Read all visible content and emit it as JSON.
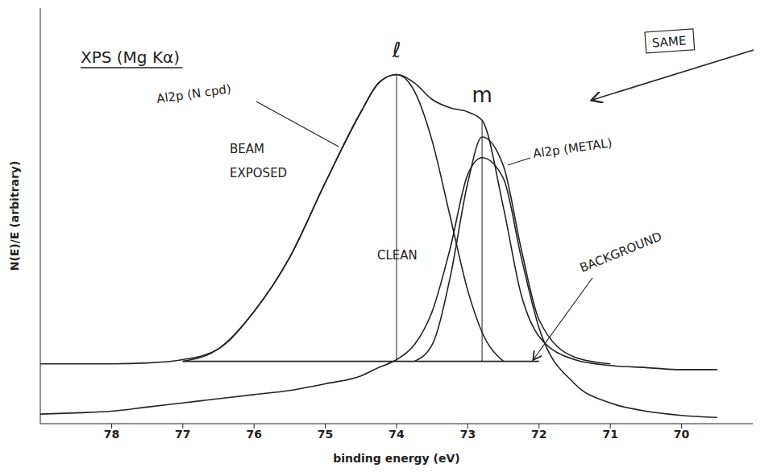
{
  "chart_data": {
    "type": "line",
    "title": "XPS (Mg Kα)",
    "x_label": "binding energy (eV)",
    "y_label": "N(E)/E (arbitrary)",
    "x": [
      79,
      78.5,
      78,
      77.5,
      77,
      76.5,
      76,
      75.5,
      75,
      74.5,
      74.25,
      74,
      73.75,
      73.5,
      73.25,
      73,
      72.8,
      72.5,
      72.25,
      72,
      71.5,
      71,
      70.5,
      70,
      69.5
    ],
    "xlim": [
      79,
      69
    ],
    "xticks": [
      78,
      77,
      76,
      75,
      74,
      73,
      72,
      71,
      70
    ],
    "ylim": [
      0,
      100
    ],
    "tick_labels": "x",
    "series": [
      {
        "name": "BEAM EXPOSED",
        "color": "#222222",
        "values": [
          14.4,
          14.4,
          14.4,
          14.6,
          15.4,
          18,
          27,
          40,
          58,
          75,
          82,
          84,
          82,
          78,
          76,
          75,
          73,
          52,
          31,
          21,
          15.4,
          14,
          13.5,
          13,
          13
        ]
      },
      {
        "name": "Al2p (N cpd)",
        "color": "#222222",
        "values": [
          null,
          null,
          null,
          null,
          15,
          18,
          27,
          40,
          58,
          75,
          82,
          84,
          80,
          68,
          50,
          32,
          22,
          15,
          null,
          null,
          null,
          null,
          null,
          null,
          null
        ]
      },
      {
        "name": "Al2p (METAL)",
        "color": "#222222",
        "values": [
          null,
          null,
          null,
          null,
          null,
          null,
          null,
          null,
          null,
          null,
          null,
          null,
          15,
          19,
          35,
          58,
          69,
          62,
          42,
          25,
          16,
          14.4,
          null,
          null,
          null
        ]
      },
      {
        "name": "CLEAN",
        "color": "#222222",
        "values": [
          2.3,
          2.6,
          3,
          4,
          5,
          6,
          7,
          8,
          9.6,
          11.5,
          13.5,
          15.4,
          19,
          27,
          42,
          60,
          64,
          59,
          40,
          23,
          9.6,
          5,
          3,
          2,
          1.5
        ]
      },
      {
        "name": "BACKGROUND",
        "color": "#222222",
        "values": [
          null,
          null,
          null,
          null,
          15,
          15,
          15,
          15,
          15,
          15,
          15,
          15,
          15,
          15,
          15,
          15,
          15,
          15,
          15,
          15,
          null,
          null,
          null,
          null,
          null
        ]
      }
    ],
    "annotations": [
      {
        "text": "ℓ",
        "x": 74
      },
      {
        "text": "m",
        "x": 72.8
      },
      {
        "text": "SAME"
      }
    ]
  }
}
